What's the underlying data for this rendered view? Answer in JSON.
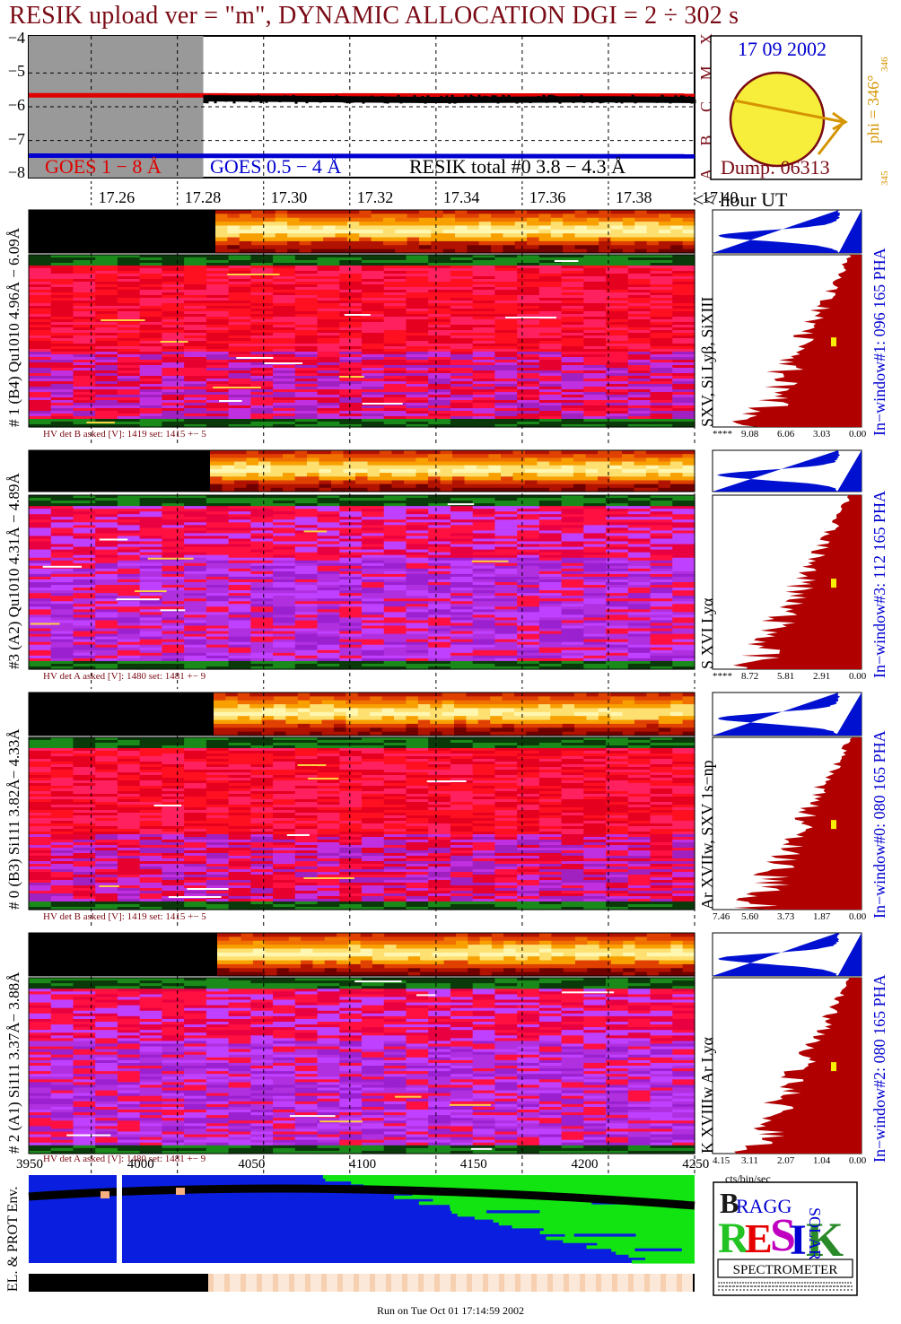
{
  "title": "RESIK upload ver = \"m\", DYNAMIC ALLOCATION  DGI =   2 ÷ 302 s",
  "chart_data": {
    "type": "line",
    "title": "RESIK upload ver = \"m\", DYNAMIC ALLOCATION  DGI =   2 ÷ 302 s",
    "x_ticks": [
      "17.26",
      "17.28",
      "17.30",
      "17.32",
      "17.34",
      "17.36",
      "17.38",
      "17.40"
    ],
    "xlabel": "<< hour UT",
    "xlim": [
      17.2455,
      17.4
    ],
    "y_ticks": [
      "−4",
      "−5",
      "−6",
      "−7",
      "−8"
    ],
    "ylim": [
      -8.1,
      -3.9
    ],
    "flare_class_labels": [
      "X",
      "M",
      "C",
      "B",
      "A"
    ],
    "series": [
      {
        "name": "GOES 1 − 8 Å",
        "color": "#e00000",
        "x": [
          17.2455,
          17.4
        ],
        "y": [
          -5.66,
          -5.67
        ]
      },
      {
        "name": "GOES 0.5 − 4 Å",
        "color": "#0000d0",
        "x": [
          17.2455,
          17.4
        ],
        "y": [
          -7.45,
          -7.47
        ]
      },
      {
        "name": "RESIK total #0  3.8 − 4.3 Å",
        "color": "#000000",
        "x": [
          17.286,
          17.3,
          17.32,
          17.34,
          17.36,
          17.38,
          17.4
        ],
        "y": [
          -5.75,
          -5.76,
          -5.78,
          -5.8,
          -5.79,
          -5.78,
          -5.8
        ]
      }
    ],
    "data_gap": [
      17.2455,
      17.286
    ]
  },
  "sun": {
    "date": "17 09 2002",
    "dump": "Dump: 06313",
    "phi": "phi = 346°",
    "phi_sub": "346",
    "phi_bot": "345"
  },
  "detectors": [
    {
      "side_label": "# 1 (B4) Qu1010 4.96Å − 6.09Å",
      "lines": "SXV, Si Lyβ, SiXIII",
      "window": "In−window#1:  096 165 PHA",
      "hv": "HV det B asked [V]:  1419 set:  1415  +−   5",
      "ticks": [
        "****",
        "9.08",
        "6.06",
        "3.03",
        "0.00"
      ]
    },
    {
      "side_label": "#3 (A2) Qu1010  4.31Å − 4.89Å",
      "lines": "S XVI Lyα",
      "window": "In−window#3:  112 165 PHA",
      "hv": "HV det A asked [V]:  1480 set:  1481  +−   9",
      "ticks": [
        "****",
        "8.72",
        "5.81",
        "2.91",
        "0.00"
      ]
    },
    {
      "side_label": "# 0 (B3) Si111  3.82Å− 4.33Å",
      "lines": "Ar XVIIw,  SXV 1s−np",
      "window": "In−window#0:  080 165 PHA",
      "hv": "HV det B asked [V]:  1419 set:  1415  +−   5",
      "ticks": [
        "7.46",
        "5.60",
        "3.73",
        "1.87",
        "0.00"
      ]
    },
    {
      "side_label": "# 2 (A1) Si111  3.37Å− 3.88Å",
      "lines": "K XVIIIw  Ar Lyα",
      "window": "In−window#2:  080 165 PHA",
      "hv": "HV det A asked [V]:  1480 set:  1481  +−   9",
      "ticks": [
        "4.15",
        "3.11",
        "2.07",
        "1.04",
        "0.00"
      ]
    }
  ],
  "pha_unit": "cts/bin/sec",
  "env": {
    "label": "EL. & PROT Env.",
    "ticks": [
      "3950",
      "4000",
      "4050",
      "4100",
      "4150",
      "4200",
      "4250"
    ]
  },
  "logo": {
    "bragg": "BRAGG",
    "resik": "RESIK",
    "solar": "SOLAR",
    "spectrometer": "SPECTROMETER"
  },
  "footer": "Run on Tue Oct 01 17:14:59 2002",
  "colors": {
    "maroon": "#7a0a14",
    "goes_red": "#e00000",
    "goes_blue": "#0000d0",
    "pha_red": "#b00000",
    "pha_blue": "#0010d0",
    "sun_yellow": "#f6ee3a",
    "env_blue": "#0a1ee0",
    "env_green": "#12e412"
  }
}
